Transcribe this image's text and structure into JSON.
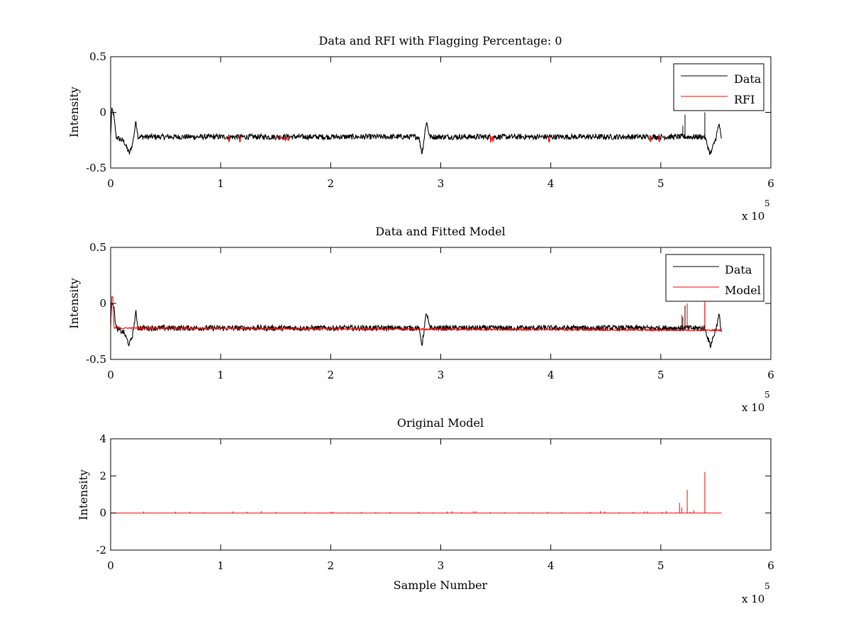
{
  "colors": {
    "data": "#000000",
    "red": "#ff0000",
    "axes": "#000000",
    "background": "#ffffff"
  },
  "chart_data": [
    {
      "type": "line",
      "title": "Data and RFI with Flagging Percentage: 0",
      "xlabel": "",
      "ylabel": "Intensity",
      "xlim": [
        0,
        600000
      ],
      "ylim": [
        -0.5,
        0.5
      ],
      "xticks": [
        "0",
        "1",
        "2",
        "3",
        "4",
        "5",
        "6"
      ],
      "yticks": [
        "-0.5",
        "0",
        "0.5"
      ],
      "x_multiplier": {
        "base": "x 10",
        "exponent": "5"
      },
      "grid": false,
      "legend_position": "top-right",
      "series": [
        {
          "name": "Data",
          "color": "#000000",
          "baseline": -0.22,
          "noise": 0.025,
          "x": [
            0,
            1000,
            2500,
            5000,
            8000,
            12000,
            17000,
            20000,
            23000,
            25000,
            280000,
            283000,
            287000,
            290000,
            293000,
            540000,
            545000,
            550000,
            553000,
            555000
          ],
          "y": [
            -0.22,
            0.02,
            0.0,
            -0.22,
            -0.24,
            -0.26,
            -0.37,
            -0.28,
            -0.08,
            -0.22,
            -0.22,
            -0.37,
            -0.08,
            -0.22,
            -0.22,
            -0.22,
            -0.38,
            -0.23,
            -0.1,
            -0.25
          ],
          "spikes": [
            [
              522000,
              -0.02
            ],
            [
              540000,
              0.0
            ],
            [
              520000,
              -0.12
            ]
          ]
        },
        {
          "name": "RFI",
          "color": "#ff0000",
          "baseline": -0.24,
          "intervals": [
            [
              107000,
              108000
            ],
            [
              117000,
              118000
            ],
            [
              152000,
              162000
            ],
            [
              345000,
              346000
            ],
            [
              347000,
              348000
            ],
            [
              498000,
              499000
            ],
            [
              490000,
              491000
            ],
            [
              398000,
              399000
            ]
          ]
        }
      ]
    },
    {
      "type": "line",
      "title": "Data and Fitted Model",
      "xlabel": "",
      "ylabel": "Intensity",
      "xlim": [
        0,
        600000
      ],
      "ylim": [
        -0.5,
        0.5
      ],
      "xticks": [
        "0",
        "1",
        "2",
        "3",
        "4",
        "5",
        "6"
      ],
      "yticks": [
        "-0.5",
        "0",
        "0.5"
      ],
      "x_multiplier": {
        "base": "x 10",
        "exponent": "5"
      },
      "grid": false,
      "legend_position": "top-right",
      "series": [
        {
          "name": "Data",
          "color": "#000000",
          "baseline": -0.22,
          "noise": 0.025,
          "x": [
            0,
            1000,
            2500,
            5000,
            8000,
            12000,
            17000,
            20000,
            23000,
            25000,
            280000,
            283000,
            287000,
            290000,
            293000,
            540000,
            545000,
            550000,
            553000,
            555000
          ],
          "y": [
            -0.22,
            0.02,
            0.0,
            -0.22,
            -0.24,
            -0.26,
            -0.37,
            -0.28,
            -0.08,
            -0.22,
            -0.22,
            -0.37,
            -0.08,
            -0.22,
            -0.22,
            -0.22,
            -0.38,
            -0.23,
            -0.1,
            -0.25
          ],
          "spikes": [
            [
              522000,
              -0.02
            ],
            [
              540000,
              0.0
            ],
            [
              520000,
              -0.12
            ]
          ]
        },
        {
          "name": "Model",
          "color": "#ff0000",
          "baseline": -0.22,
          "x": [
            0,
            1000,
            2000,
            3000,
            5000,
            555000
          ],
          "y": [
            -0.22,
            0.06,
            0.05,
            -0.22,
            -0.22,
            -0.24
          ],
          "spikes": [
            [
              519000,
              -0.1
            ],
            [
              524000,
              0.0
            ],
            [
              540000,
              0.02
            ]
          ]
        }
      ]
    },
    {
      "type": "line",
      "title": "Original Model",
      "xlabel": "Sample Number",
      "ylabel": "Intensity",
      "xlim": [
        0,
        600000
      ],
      "ylim": [
        -2,
        4
      ],
      "xticks": [
        "0",
        "1",
        "2",
        "3",
        "4",
        "5",
        "6"
      ],
      "yticks": [
        "-2",
        "0",
        "2",
        "4"
      ],
      "x_multiplier": {
        "base": "x 10",
        "exponent": "5"
      },
      "grid": false,
      "series": [
        {
          "name": "",
          "color": "#ff0000",
          "baseline": 0,
          "x": [
            0,
            555000
          ],
          "y": [
            0,
            0
          ],
          "spikes": [
            [
              517000,
              0.55
            ],
            [
              524000,
              1.25
            ],
            [
              540000,
              2.2
            ],
            [
              530000,
              0.15
            ],
            [
              519000,
              0.3
            ],
            [
              505000,
              0.1
            ],
            [
              485000,
              0.08
            ],
            [
              445000,
              0.1
            ],
            [
              330000,
              0.1
            ],
            [
              310000,
              0.1
            ],
            [
              30000,
              0.08
            ],
            [
              200000,
              0.06
            ]
          ]
        }
      ]
    }
  ]
}
